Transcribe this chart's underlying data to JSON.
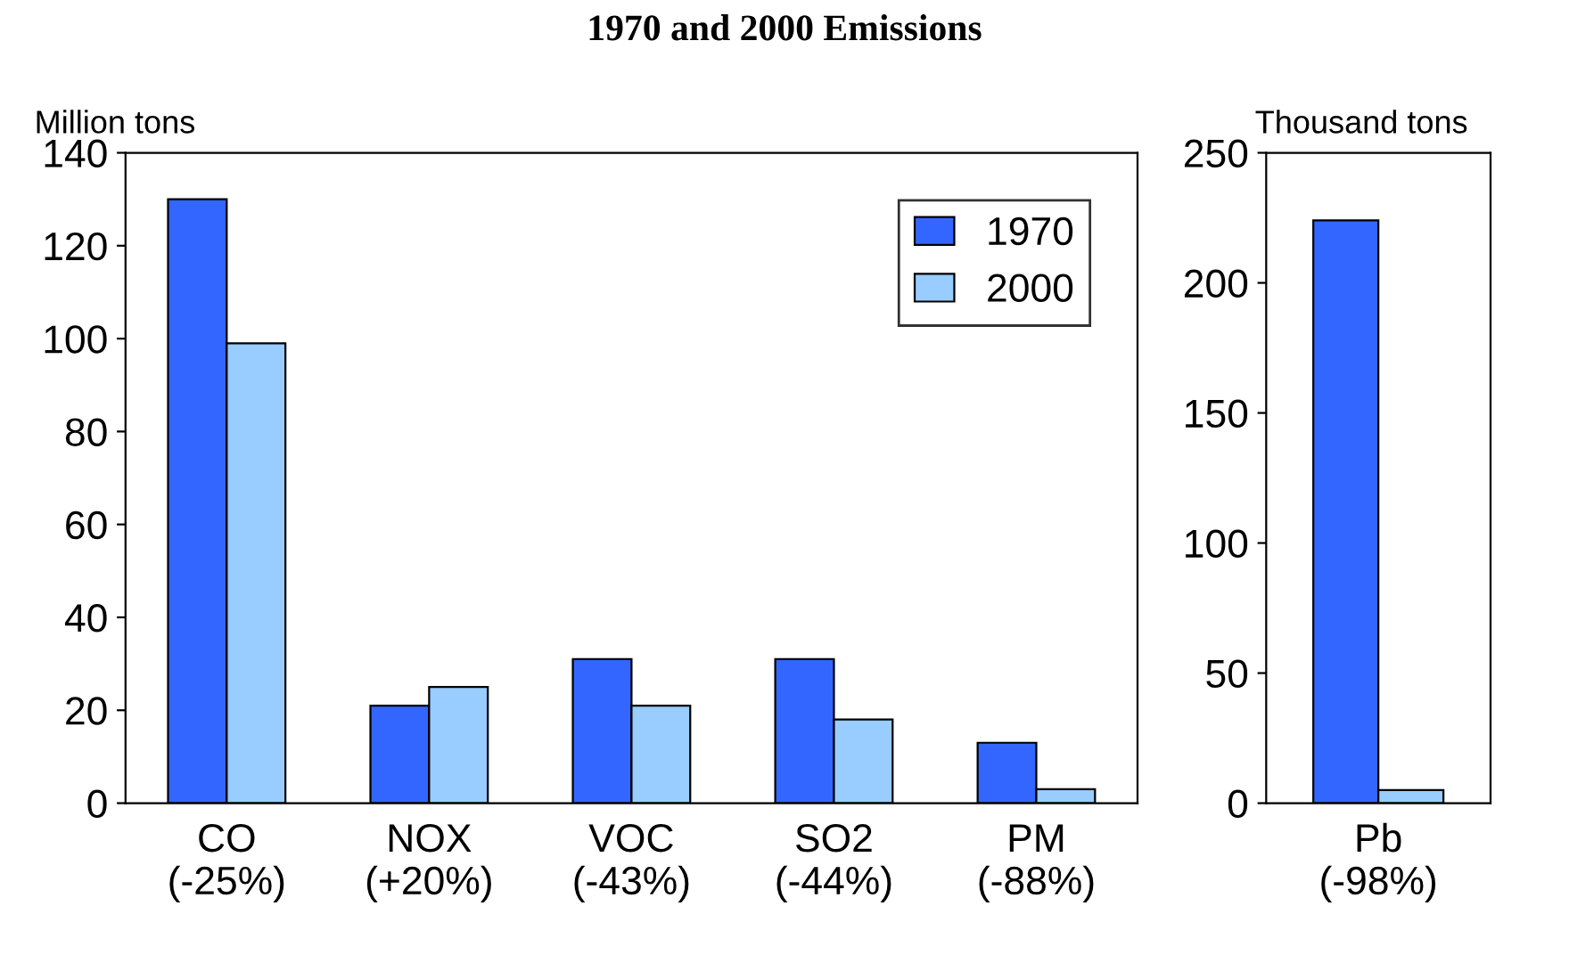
{
  "chart_data": [
    {
      "type": "bar",
      "title": "1970 and 2000 Emissions",
      "ylabel": "Million tons",
      "categories": [
        "CO\n(-25%)",
        "NOX\n(+20%)",
        "VOC\n(-43%)",
        "SO2\n(-44%)",
        "PM\n(-88%)"
      ],
      "series": [
        {
          "name": "1970",
          "color": "#3366ff",
          "values": [
            130,
            21,
            31,
            31,
            13
          ]
        },
        {
          "name": "2000",
          "color": "#99ccff",
          "values": [
            99,
            25,
            21,
            18,
            3
          ]
        }
      ],
      "ylim": [
        0,
        140
      ],
      "yticks": [
        0,
        20,
        40,
        60,
        80,
        100,
        120,
        140
      ],
      "grid": false,
      "legend": "top right"
    },
    {
      "type": "bar",
      "ylabel": "Thousand tons",
      "categories": [
        "Pb\n(-98%)"
      ],
      "series": [
        {
          "color": "#3366ff",
          "values": [
            224
          ]
        },
        {
          "color": "#99ccff",
          "values": [
            5
          ]
        }
      ],
      "ylim": [
        0,
        250
      ],
      "yticks": [
        0,
        50,
        100,
        150,
        200,
        250
      ],
      "grid": false,
      "legend": false
    }
  ]
}
